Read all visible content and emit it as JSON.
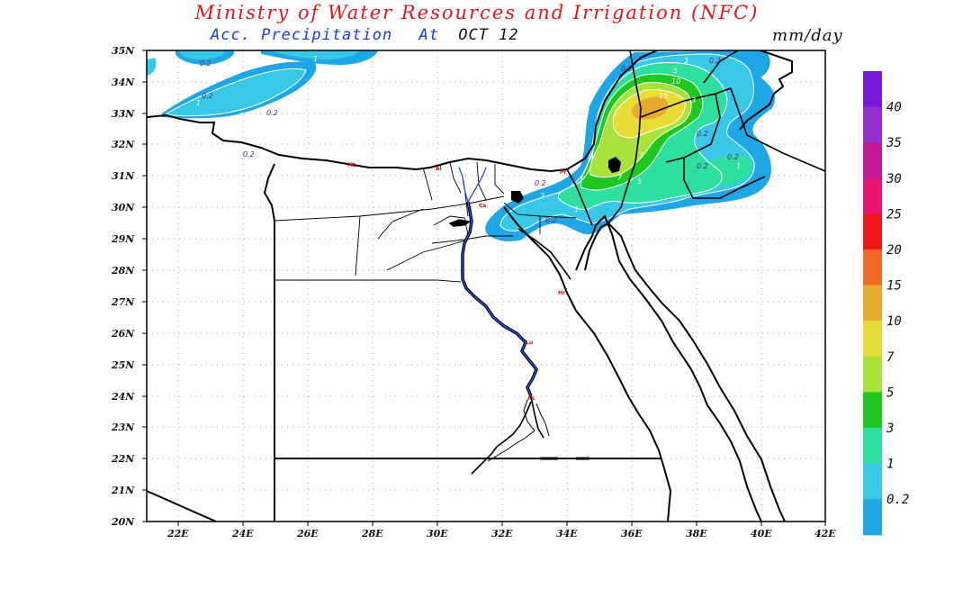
{
  "header": {
    "title": "Ministry of Water Resources and Irrigation (NFC)",
    "subtitle": "Acc. Precipitation",
    "subtitle_at": "At",
    "date": "OCT 12",
    "units": "mm/day"
  },
  "axes": {
    "lat_labels": [
      "35N",
      "34N",
      "33N",
      "32N",
      "31N",
      "30N",
      "29N",
      "28N",
      "27N",
      "26N",
      "25N",
      "24N",
      "23N",
      "22N",
      "21N",
      "20N"
    ],
    "lon_labels": [
      "22E",
      "24E",
      "26E",
      "28E",
      "30E",
      "32E",
      "34E",
      "36E",
      "38E",
      "40E",
      "42E"
    ]
  },
  "colorbar": {
    "labels": [
      "40",
      "35",
      "30",
      "25",
      "20",
      "15",
      "10",
      "7",
      "5",
      "3",
      "1",
      "0.2"
    ],
    "colors": [
      "#7a18d8",
      "#9a2ed0",
      "#c21a9a",
      "#e81470",
      "#ee1818",
      "#f06a26",
      "#e8aa2e",
      "#e8dc36",
      "#a8e23a",
      "#1ec81e",
      "#2ee0a0",
      "#36c8e6",
      "#1ea6e6"
    ]
  },
  "contour_labels": {
    "c_0_2_a": "0.2",
    "c_0_2_b": "0.2",
    "c_0_2_c": "0.2",
    "c_0_2_d": "0.2",
    "c_0_2_e": "0.2",
    "c_0_2_f": "0.2",
    "c_0_2_g": "0.2",
    "c_0_2_h": "0.2",
    "c_0_2_i": "0.2",
    "c_0_2_j": "0.2",
    "c_0_2_k": "0.2",
    "c_1_a": "1",
    "c_1_b": "1",
    "c_1_c": "1",
    "c_1_d": "1",
    "c_1_e": "1",
    "c_3_a": "3",
    "c_3_b": "3",
    "c_3_c": "3",
    "c_3_d": "3",
    "c_5_a": "5",
    "c_5_b": "5",
    "c_7_a": "7",
    "c_10_a": "10",
    "c_15_a": "15"
  },
  "city_labels": [
    "Mt",
    "Al",
    "Pr",
    "Ca",
    "Hr",
    "Lu",
    "As"
  ]
}
